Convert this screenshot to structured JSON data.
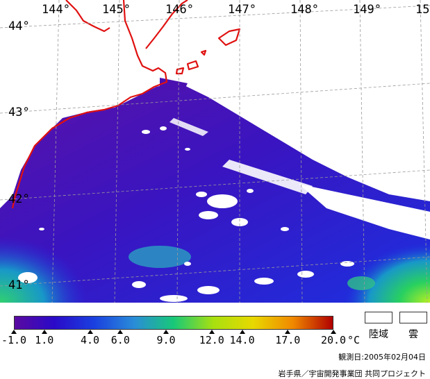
{
  "map": {
    "longitude_labels": [
      "144°",
      "145°",
      "146°",
      "147°",
      "148°",
      "149°",
      "15"
    ],
    "latitude_labels": [
      "44°",
      "43°",
      "42°",
      "41°"
    ]
  },
  "colorbar": {
    "tick_labels": [
      "-1.0",
      "1.0",
      "4.0",
      "6.0",
      "9.0",
      "12.0",
      "14.0",
      "17.0",
      "20.0"
    ],
    "unit": "°C",
    "colors": [
      "#5a0aa0",
      "#2a0ac8",
      "#1a40e0",
      "#2a8cd8",
      "#18c878",
      "#a8e010",
      "#e8d800",
      "#f08800",
      "#b00000"
    ]
  },
  "legend": {
    "land_label": "陸域",
    "cloud_label": "雲"
  },
  "observation_date": "観測日:2005年02月04日",
  "credit": "岩手県／宇宙開発事業団  共同プロジェクト",
  "colors": {
    "coast": "#e01010",
    "sea_main": "#3a10c8",
    "sea_purple": "#5a12a8",
    "sea_blue": "#1c30e0",
    "warm_green": "#28d060",
    "cloud": "#ffffff",
    "grid": "#9a9a9a"
  }
}
